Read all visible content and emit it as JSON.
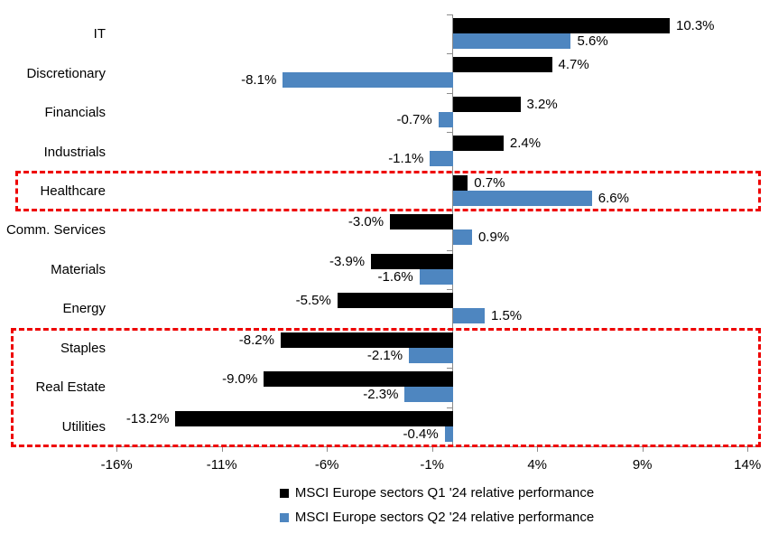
{
  "chart_data": {
    "type": "bar",
    "orientation": "horizontal",
    "title": "",
    "xlabel": "",
    "ylabel": "",
    "grid": false,
    "legend_position": "bottom-center",
    "categories": [
      "IT",
      "Discretionary",
      "Financials",
      "Industrials",
      "Healthcare",
      "Comm. Services",
      "Materials",
      "Energy",
      "Staples",
      "Real Estate",
      "Utilities"
    ],
    "series": [
      {
        "name": "MSCI Europe sectors Q1 '24 relative performance",
        "color": "#000000",
        "values": [
          10.3,
          4.7,
          3.2,
          2.4,
          0.7,
          -3.0,
          -3.9,
          -5.5,
          -8.2,
          -9.0,
          -13.2
        ],
        "labels": [
          "10.3%",
          "4.7%",
          "3.2%",
          "2.4%",
          "0.7%",
          "-3.0%",
          "-3.9%",
          "-5.5%",
          "-8.2%",
          "-9.0%",
          "-13.2%"
        ]
      },
      {
        "name": "MSCI Europe sectors Q2 '24 relative performance",
        "color": "#4e86c0",
        "values": [
          5.6,
          -8.1,
          -0.7,
          -1.1,
          6.6,
          0.9,
          -1.6,
          1.5,
          -2.1,
          -2.3,
          -0.4
        ],
        "labels": [
          "5.6%",
          "-8.1%",
          "-0.7%",
          "-1.1%",
          "6.6%",
          "0.9%",
          "-1.6%",
          "1.5%",
          "-2.1%",
          "-2.3%",
          "-0.4%"
        ]
      }
    ],
    "x_axis": {
      "tick_labels": [
        "-16%",
        "-11%",
        "-6%",
        "-1%",
        "4%",
        "9%",
        "14%"
      ],
      "tick_values": [
        -16,
        -11,
        -6,
        -1,
        4,
        9,
        14
      ],
      "min": -16,
      "max": 14.5
    },
    "highlight_boxes": [
      {
        "categories": [
          "Healthcare"
        ],
        "color": "#ee0000",
        "style": "dashed"
      },
      {
        "categories": [
          "Staples",
          "Real Estate",
          "Utilities"
        ],
        "color": "#ee0000",
        "style": "dashed"
      }
    ],
    "colors": {
      "axis": "#8c8c8c",
      "highlight": "#ee0000",
      "q1_bar": "#000000",
      "q2_bar": "#4e86c0"
    }
  }
}
